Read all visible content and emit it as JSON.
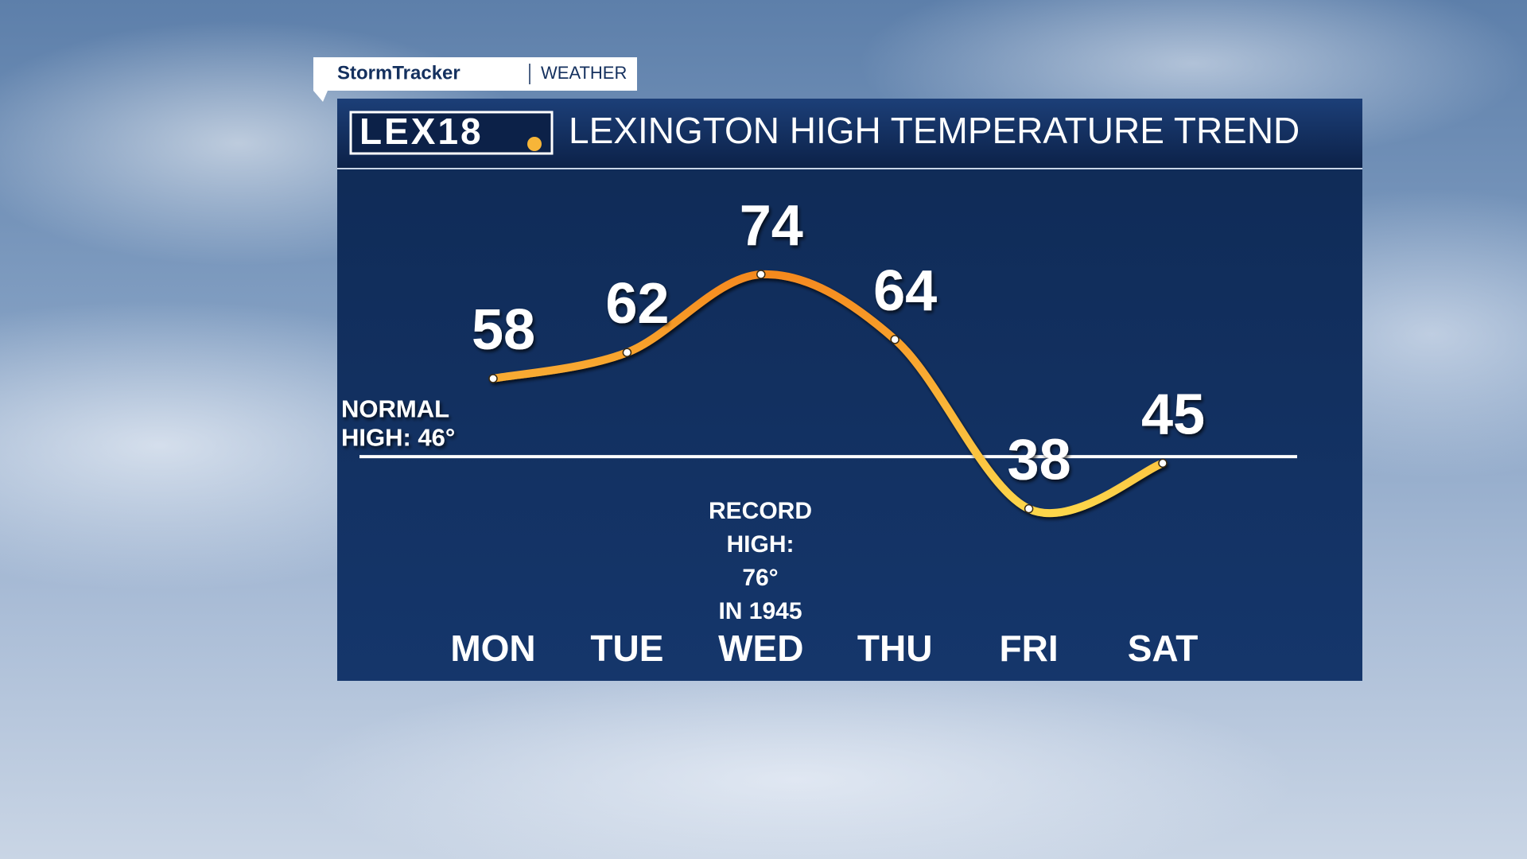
{
  "brand": "StormTracker",
  "brand_section": "WEATHER",
  "logo": "LEX18",
  "chart_data": {
    "type": "line",
    "title": "LEXINGTON HIGH TEMPERATURE TREND",
    "categories": [
      "MON",
      "TUE",
      "WED",
      "THU",
      "FRI",
      "SAT"
    ],
    "values": [
      58,
      62,
      74,
      64,
      38,
      45
    ],
    "gradient": [
      "#f58a1f",
      "#fdd64b"
    ],
    "ylim": [
      20,
      90
    ],
    "reference_line": {
      "value": 46,
      "label": [
        "NORMAL",
        "HIGH: 46°"
      ]
    },
    "annotation": [
      "RECORD",
      "HIGH:",
      "76°",
      "IN 1945"
    ]
  }
}
